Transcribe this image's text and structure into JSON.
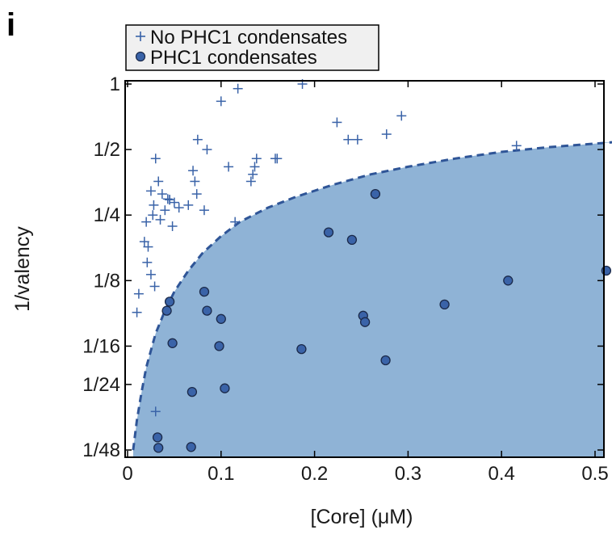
{
  "panel_label": "i",
  "chart_data": {
    "type": "scatter",
    "xlabel": "[Core] (μM)",
    "ylabel": "1/valency",
    "xlim": [
      0,
      0.52
    ],
    "x_ticks": [
      0,
      0.1,
      0.2,
      0.3,
      0.4,
      0.5
    ],
    "x_tick_labels": [
      "0",
      "0.1",
      "0.2",
      "0.3",
      "0.4",
      "0.5"
    ],
    "y_scale": "log",
    "ylim": [
      0.02083,
      1
    ],
    "y_ticks": [
      1,
      0.5,
      0.25,
      0.125,
      0.0625,
      0.04167,
      0.02083
    ],
    "y_tick_labels": [
      "1",
      "1/2",
      "1/4",
      "1/8",
      "1/16",
      "1/24",
      "1/48"
    ],
    "legend": {
      "position": "top-left, above plot",
      "entries": [
        {
          "label": "No PHC1 condensates",
          "marker": "plus"
        },
        {
          "label": "PHC1 condensates",
          "marker": "circle"
        }
      ]
    },
    "colors": {
      "marker": "#3a63a8",
      "marker_edge": "#1b2a4a",
      "region": "#8fb3d6",
      "boundary": "#2f5597"
    },
    "series": [
      {
        "name": "No PHC1 condensates",
        "marker": "plus",
        "points": [
          [
            0.01,
            0.0893
          ],
          [
            0.012,
            0.1087
          ],
          [
            0.018,
            0.1887
          ],
          [
            0.02,
            0.2326
          ],
          [
            0.021,
            0.1515
          ],
          [
            0.022,
            0.1786
          ],
          [
            0.025,
            0.1333
          ],
          [
            0.025,
            0.3226
          ],
          [
            0.027,
            0.25
          ],
          [
            0.028,
            0.2778
          ],
          [
            0.029,
            0.1176
          ],
          [
            0.03,
            0.0313
          ],
          [
            0.03,
            0.4545
          ],
          [
            0.033,
            0.3571
          ],
          [
            0.035,
            0.2381
          ],
          [
            0.037,
            0.3125
          ],
          [
            0.04,
            0.2632
          ],
          [
            0.043,
            0.2963
          ],
          [
            0.045,
            0.2941
          ],
          [
            0.045,
            0.2941
          ],
          [
            0.048,
            0.2222
          ],
          [
            0.05,
            0.2857
          ],
          [
            0.055,
            0.2703
          ],
          [
            0.065,
            0.2778
          ],
          [
            0.07,
            0.4
          ],
          [
            0.072,
            0.3571
          ],
          [
            0.074,
            0.3125
          ],
          [
            0.075,
            0.5556
          ],
          [
            0.082,
            0.2632
          ],
          [
            0.085,
            0.5
          ],
          [
            0.1,
            0.8333
          ],
          [
            0.108,
            0.4167
          ],
          [
            0.115,
            0.2326
          ],
          [
            0.118,
            0.9524
          ],
          [
            0.132,
            0.3571
          ],
          [
            0.134,
            0.3846
          ],
          [
            0.136,
            0.4167
          ],
          [
            0.138,
            0.4545
          ],
          [
            0.158,
            0.4545
          ],
          [
            0.16,
            0.4545
          ],
          [
            0.187,
            1.0
          ],
          [
            0.224,
            0.6667
          ],
          [
            0.236,
            0.5556
          ],
          [
            0.246,
            0.5556
          ],
          [
            0.277,
            0.5882
          ],
          [
            0.293,
            0.7143
          ],
          [
            0.416,
            0.5208
          ]
        ]
      },
      {
        "name": "PHC1 condensates",
        "marker": "circle",
        "points": [
          [
            0.032,
            0.0238
          ],
          [
            0.033,
            0.0213
          ],
          [
            0.042,
            0.0909
          ],
          [
            0.045,
            0.1
          ],
          [
            0.048,
            0.0645
          ],
          [
            0.068,
            0.0215
          ],
          [
            0.069,
            0.0385
          ],
          [
            0.082,
            0.1111
          ],
          [
            0.085,
            0.0909
          ],
          [
            0.098,
            0.0625
          ],
          [
            0.1,
            0.0833
          ],
          [
            0.104,
            0.04
          ],
          [
            0.186,
            0.0606
          ],
          [
            0.215,
            0.2083
          ],
          [
            0.24,
            0.1923
          ],
          [
            0.252,
            0.0862
          ],
          [
            0.254,
            0.0806
          ],
          [
            0.265,
            0.3125
          ],
          [
            0.276,
            0.0538
          ],
          [
            0.339,
            0.0971
          ],
          [
            0.407,
            0.125
          ],
          [
            0.512,
            0.1389
          ]
        ]
      }
    ],
    "boundary_curve": {
      "style": "dashed",
      "points": [
        [
          0.006,
          0.0208
        ],
        [
          0.01,
          0.0286
        ],
        [
          0.015,
          0.0385
        ],
        [
          0.02,
          0.05
        ],
        [
          0.03,
          0.0714
        ],
        [
          0.04,
          0.0909
        ],
        [
          0.05,
          0.1111
        ],
        [
          0.065,
          0.1389
        ],
        [
          0.08,
          0.1667
        ],
        [
          0.1,
          0.2
        ],
        [
          0.12,
          0.2326
        ],
        [
          0.15,
          0.2703
        ],
        [
          0.18,
          0.303
        ],
        [
          0.22,
          0.3448
        ],
        [
          0.26,
          0.3846
        ],
        [
          0.3,
          0.4167
        ],
        [
          0.35,
          0.4545
        ],
        [
          0.4,
          0.4878
        ],
        [
          0.45,
          0.5128
        ],
        [
          0.52,
          0.5405
        ]
      ]
    }
  }
}
